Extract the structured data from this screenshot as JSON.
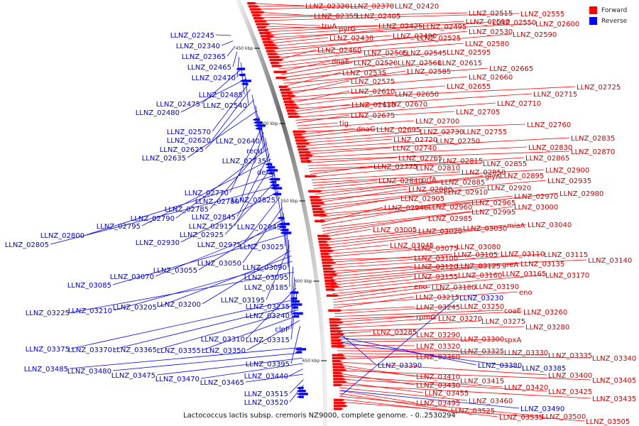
{
  "caption": "Lactococcus lactis subsp. cremoris NZ9000, complete genome. - 0..2530294",
  "legend": [
    {
      "label": "Forward",
      "color": "#ff0000"
    },
    {
      "label": "Reverse",
      "color": "#0000ff"
    }
  ],
  "colors": {
    "forward_line": "#ff0000",
    "forward_text": "#cc0000",
    "reverse_line": "#0000ff",
    "reverse_text": "#0000cc",
    "backbone": "#555555"
  },
  "ticks": [
    "450 kbp",
    "500 kbp",
    "550 kbp",
    "600 kbp",
    "650 kbp"
  ],
  "forward_labels": [
    "LLNZ_02320",
    "LLNZ_02370",
    "LLNZ_02420",
    "LLNZ_02355",
    "LLNZ_02405",
    "LLNZ_02515",
    "LLNZ_02555",
    "truA",
    "pyrG",
    "LLNZ_02425",
    "LLNZ_02510",
    "LLNZ_02550",
    "LLNZ_02600",
    "LLNZ_02495",
    "LLNZ_02430",
    "LLNZ_02490",
    "LLNZ_02525",
    "LLNZ_02530",
    "LLNZ_02590",
    "LLNZ_02580",
    "LLNZ_02460",
    "LLNZ_02505",
    "LLNZ_02545",
    "LLNZ_02595",
    "dnaE",
    "LLNZ_02520",
    "LLNZ_02560",
    "LLNZ_02615",
    "LLNZ_02665",
    "LLNZ_02535",
    "LLNZ_02585",
    "LLNZ_02660",
    "LLNZ_02575",
    "LLNZ_02655",
    "LLNZ_02725",
    "LLNZ_02610",
    "LLNZ_02650",
    "LLNZ_02715",
    "LLNZ_02630",
    "LLNZ_02670",
    "LLNZ_02710",
    "LLNZ_02705",
    "LLNZ_02675",
    "tig",
    "LLNZ_02700",
    "LLNZ_02760",
    "dnaG",
    "LLNZ_02695",
    "LLNZ_02730",
    "LLNZ_02755",
    "LLNZ_02720",
    "LLNZ_02750",
    "LLNZ_02835",
    "LLNZ_02740",
    "LLNZ_02830",
    "LLNZ_02870",
    "LLNZ_02765",
    "LLNZ_02815",
    "LLNZ_02855",
    "LLNZ_02865",
    "LLNZ_02775",
    "LLNZ_02810",
    "LLNZ_02850",
    "LLNZ_02900",
    "LLNZ_02840",
    "prfA",
    "LLNZ_02885",
    "glyA",
    "LLNZ_02895",
    "LLNZ_02935",
    "LLNZ_02880",
    "LLNZ_02910",
    "LLNZ_02920",
    "LLNZ_02905",
    "LLNZ_02965",
    "LLNZ_02970",
    "LLNZ_02980",
    "LLNZ_02940",
    "LLNZ_02960",
    "LLNZ_02995",
    "LLNZ_03000",
    "LLNZ_02985",
    "LLNZ_03005",
    "LLNZ_03020",
    "LLNZ_03030",
    "miaA",
    "LLNZ_03040",
    "LLNZ_03045",
    "LLNZ_03075",
    "LLNZ_03080",
    "LLNZ_03100",
    "LLNZ_03105",
    "LLNZ_03110",
    "LLNZ_03115",
    "LLNZ_03140",
    "LLNZ_03120",
    "LLNZ_03125",
    "greA",
    "LLNZ_03135",
    "LLNZ_03155",
    "LLNZ_03160",
    "LLNZ_03165",
    "LLNZ_03170",
    "eno",
    "LLNZ_03180",
    "LLNZ_03190",
    "eno",
    "LLNZ_03215",
    "LLNZ_03245",
    "LLNZ_03250",
    "coaE",
    "LLNZ_03260",
    "rpmG",
    "LLNZ_03270",
    "LLNZ_03275",
    "LLNZ_03280",
    "LLNZ_03285",
    "LLNZ_03290",
    "LLNZ_03300",
    "spxA",
    "LLNZ_03320",
    "LLNZ_03325",
    "LLNZ_03330",
    "LLNZ_03335",
    "LLNZ_03340",
    "LLNZ_03360",
    "LLNZ_03400",
    "LLNZ_03410",
    "LLNZ_03415",
    "LLNZ_03405",
    "LLNZ_03430",
    "LLNZ_03420",
    "LLNZ_03425",
    "LLNZ_03455",
    "LLNZ_03435",
    "LLNZ_03460",
    "LLNZ_03495",
    "LLNZ_03525",
    "LLNZ_03500",
    "LLNZ_03535",
    "LLNZ_03505"
  ],
  "reverse_labels": [
    "LLNZ_02245",
    "LLNZ_02340",
    "LLNZ_02365",
    "LLNZ_02465",
    "LLNZ_02470",
    "LLNZ_02485",
    "LLNZ_02475",
    "LLNZ_02540",
    "LLNZ_02480",
    "LLNZ_02570",
    "LLNZ_02620",
    "LLNZ_02640",
    "LLNZ_02625",
    "recU",
    "LLNZ_02635",
    "LLNZ_02735",
    "def",
    "LLNZ_02770",
    "LLNZ_02780",
    "LLNZ_02825",
    "LLNZ_02785",
    "LLNZ_02790",
    "LLNZ_02845",
    "LLNZ_02795",
    "LLNZ_02915",
    "LLNZ_02945",
    "LLNZ_02800",
    "LLNZ_02925",
    "LLNZ_02805",
    "LLNZ_02930",
    "LLNZ_02975",
    "LLNZ_03025",
    "LLNZ_03050",
    "LLNZ_03090",
    "LLNZ_03055",
    "LLNZ_03070",
    "LLNZ_03095",
    "LLNZ_03085",
    "LLNZ_03185",
    "LLNZ_03195",
    "LLNZ_03200",
    "LLNZ_03205",
    "LLNZ_03210",
    "LLNZ_03235",
    "LLNZ_03225",
    "LLNZ_03240",
    "clpP",
    "LLNZ_03310",
    "LLNZ_03315",
    "LLNZ_03375",
    "LLNZ_03370",
    "LLNZ_03365",
    "LLNZ_03355",
    "LLNZ_03350",
    "LLNZ_03395",
    "LLNZ_03390",
    "LLNZ_03380",
    "LLNZ_03385",
    "LLNZ_03485",
    "LLNZ_03480",
    "LLNZ_03475",
    "LLNZ_03470",
    "LLNZ_03440",
    "LLNZ_03465",
    "LLNZ_03515",
    "LLNZ_03520",
    "LLNZ_03490",
    "LLNZ_03230"
  ]
}
